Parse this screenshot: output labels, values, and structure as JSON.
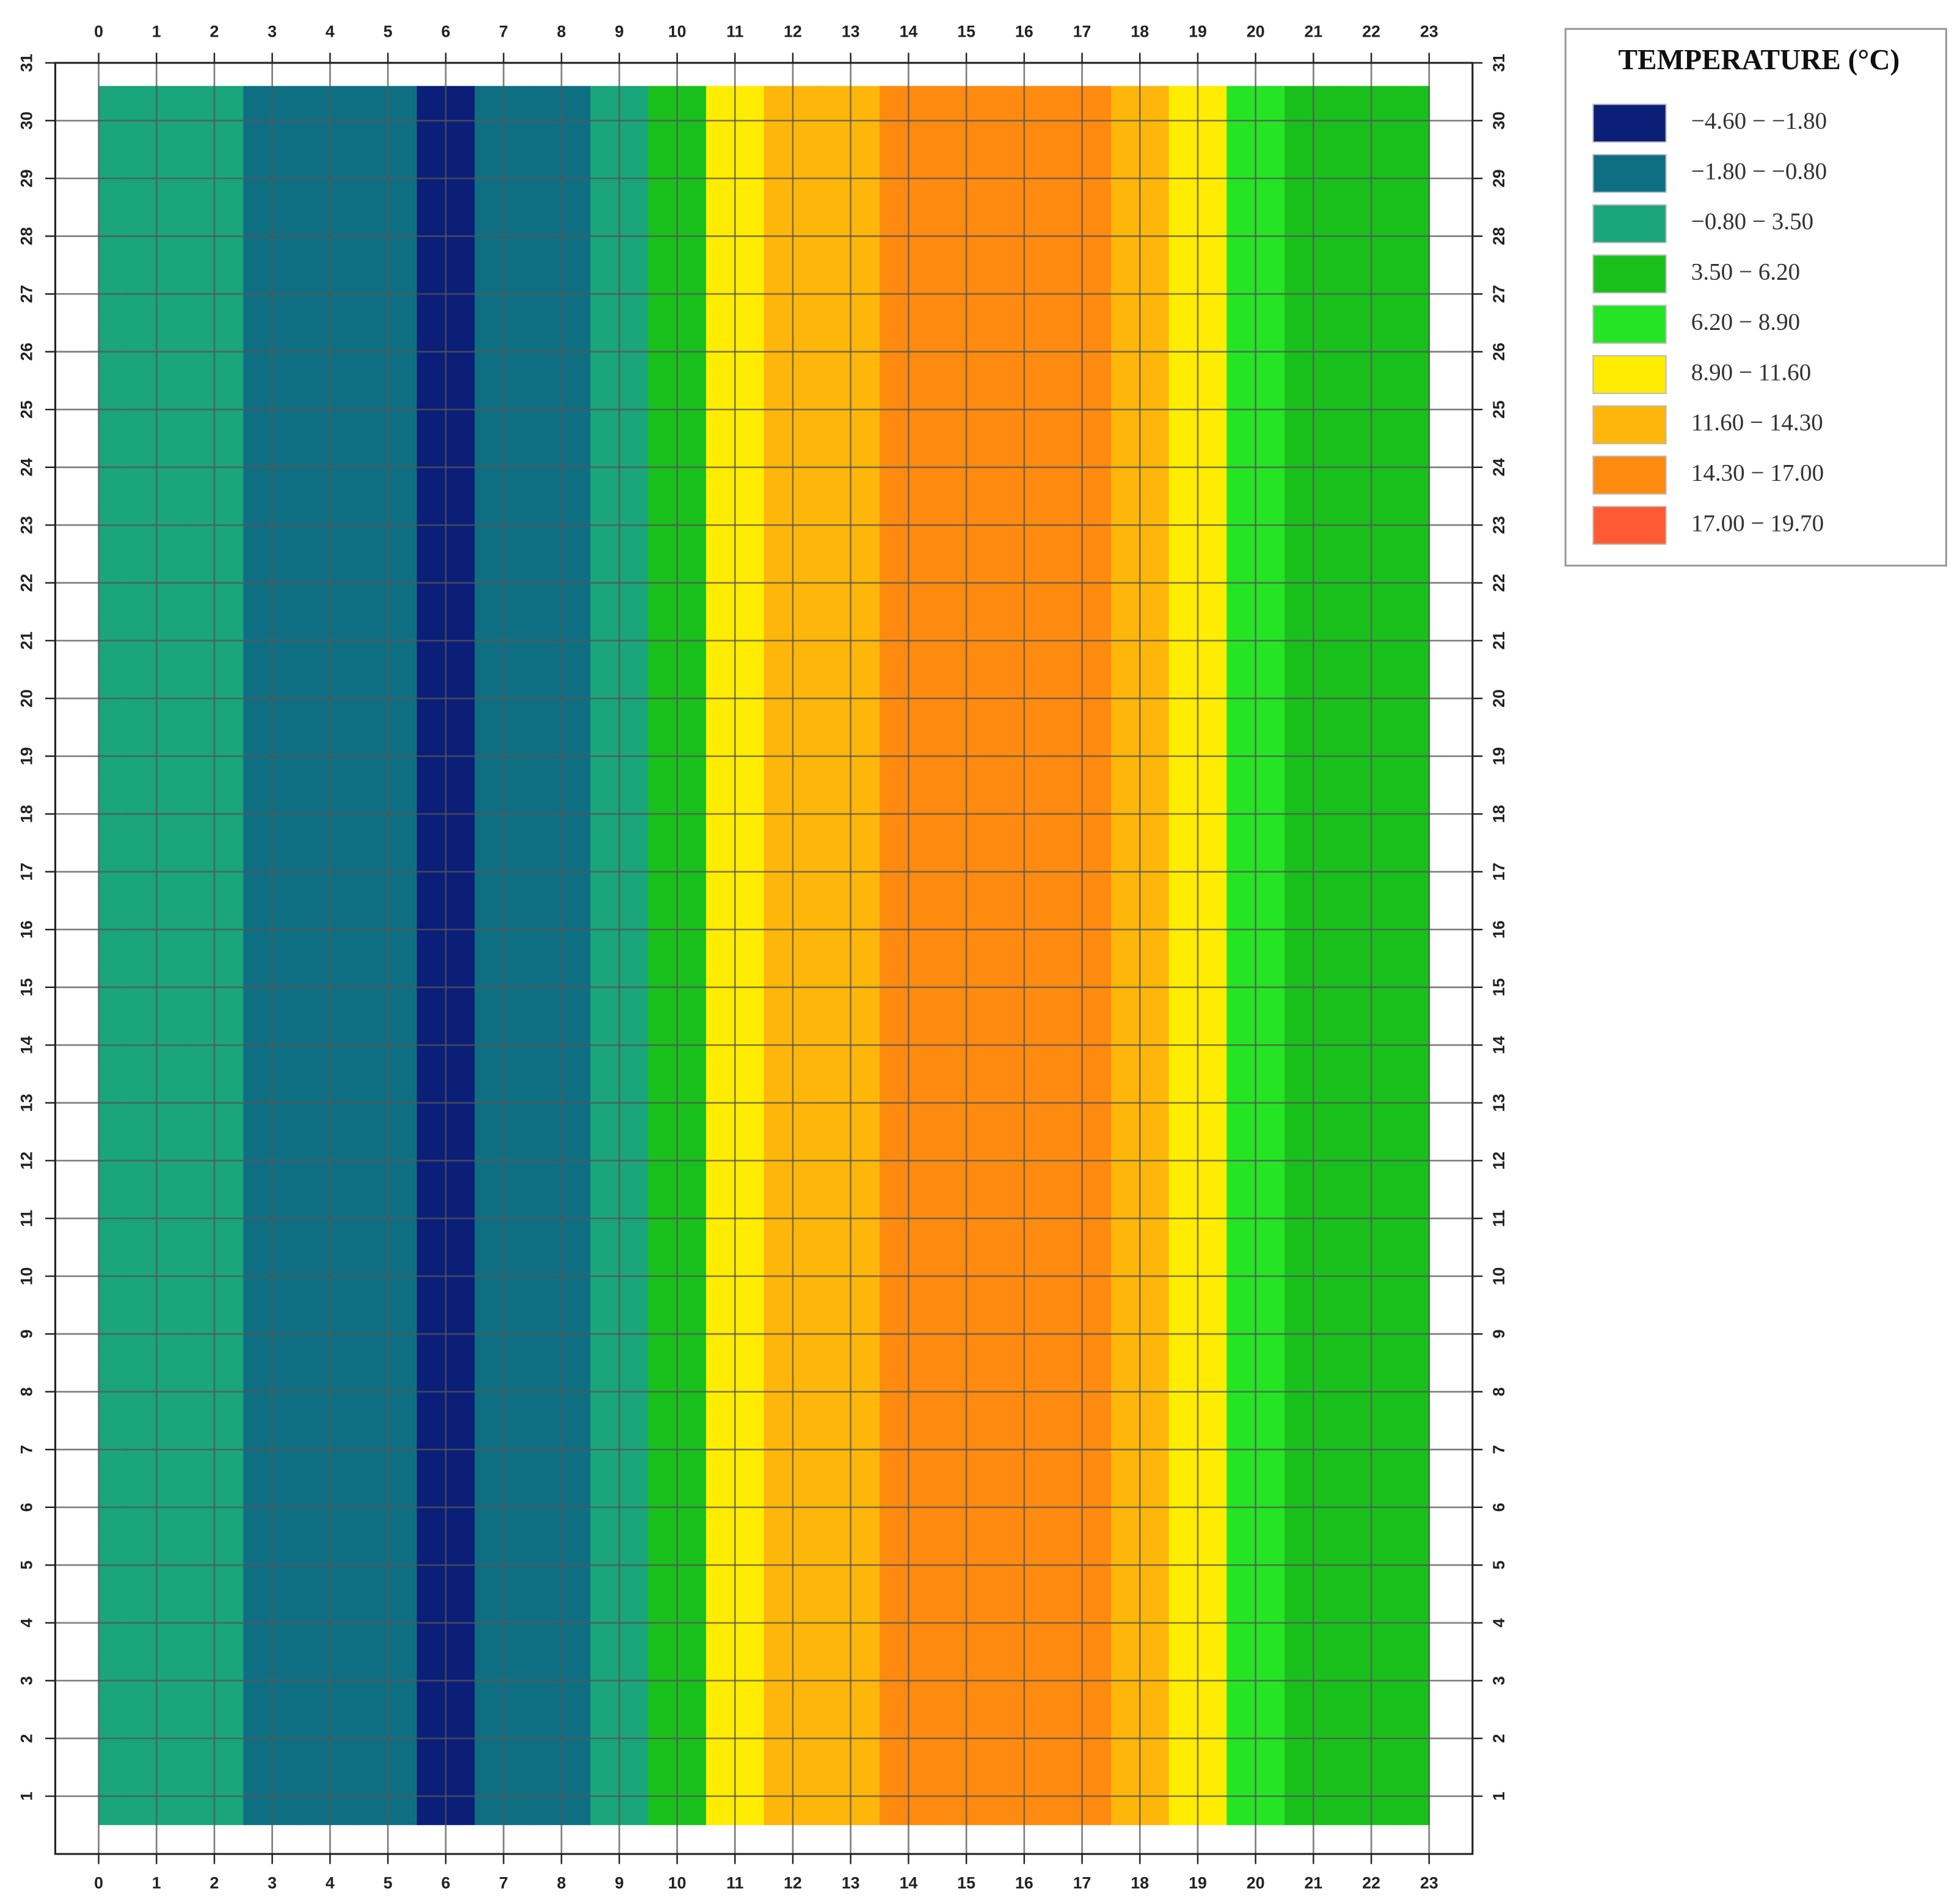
{
  "chart_data": {
    "type": "contour",
    "x": [
      0,
      1,
      2,
      3,
      4,
      5,
      6,
      7,
      8,
      9,
      10,
      11,
      12,
      13,
      14,
      15,
      16,
      17,
      18,
      19,
      20,
      21,
      22,
      23
    ],
    "values": [
      2,
      2,
      1,
      -1,
      -1.2,
      -1.5,
      -2.5,
      -1.5,
      -1,
      2.5,
      5,
      10,
      12.5,
      14,
      15,
      15.5,
      16,
      15,
      13,
      10,
      7.5,
      5,
      4.5,
      4
    ],
    "levels": [
      -4.6,
      -1.8,
      -0.8,
      3.5,
      6.2,
      8.9,
      11.6,
      14.3,
      17,
      19.7
    ],
    "xlim": [
      -0.75,
      23.75
    ],
    "ylim": [
      0,
      31
    ],
    "xticks": [
      0,
      1,
      2,
      3,
      4,
      5,
      6,
      7,
      8,
      9,
      10,
      11,
      12,
      13,
      14,
      15,
      16,
      17,
      18,
      19,
      20,
      21,
      22,
      23
    ],
    "yticks": [
      1,
      2,
      3,
      4,
      5,
      6,
      7,
      8,
      9,
      10,
      11,
      12,
      13,
      14,
      15,
      16,
      17,
      18,
      19,
      20,
      21,
      22,
      23,
      24,
      25,
      26,
      27,
      28,
      29,
      30,
      31
    ],
    "grid": true,
    "legend": {
      "title": "TEMPERATURE (°C)",
      "position": "right",
      "items": [
        {
          "label": "−4.60 − −1.80",
          "color": "#0b1f78"
        },
        {
          "label": "−1.80 − −0.80",
          "color": "#0f6f82"
        },
        {
          "label": "−0.80 − 3.50",
          "color": "#1ba57a"
        },
        {
          "label": "3.50 − 6.20",
          "color": "#19c01c"
        },
        {
          "label": "6.20 − 8.90",
          "color": "#25e424"
        },
        {
          "label": "8.90 − 11.60",
          "color": "#ffec00"
        },
        {
          "label": "11.60 − 14.30",
          "color": "#ffb60a"
        },
        {
          "label": "14.30 − 17.00",
          "color": "#ff8a10"
        },
        {
          "label": "17.00 − 19.70",
          "color": "#ff5a34"
        }
      ]
    }
  }
}
